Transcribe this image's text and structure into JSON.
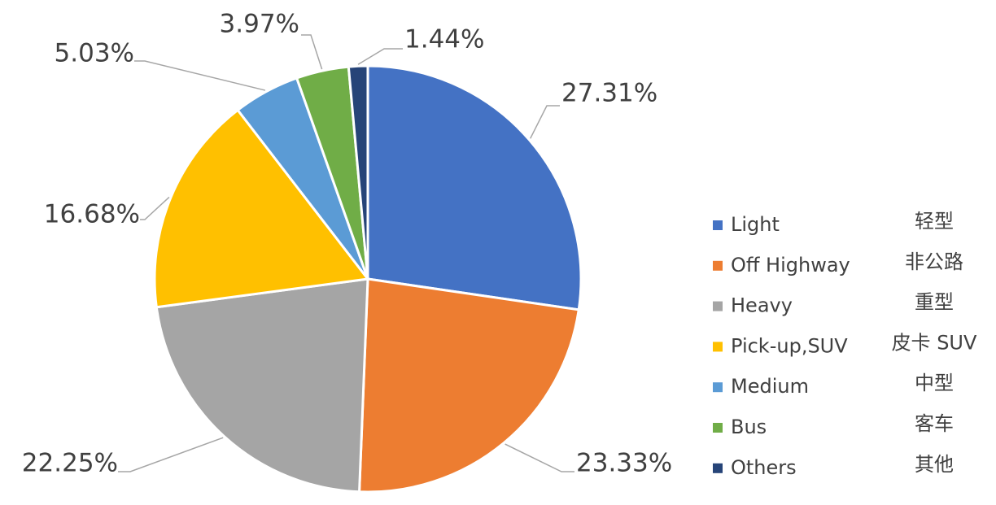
{
  "chart_data": {
    "type": "pie",
    "categories": [
      "Light",
      "Off Highway",
      "Heavy",
      "Pick-up,SUV",
      "Medium",
      "Bus",
      "Others"
    ],
    "categories_zh": [
      "轻型",
      "非公路",
      "重型",
      "皮卡 SUV",
      "中型",
      "客车",
      "其他"
    ],
    "values": [
      27.31,
      23.33,
      22.25,
      16.68,
      5.03,
      3.97,
      1.44
    ],
    "value_labels": [
      "27.31%",
      "23.33%",
      "22.25%",
      "16.68%",
      "5.03%",
      "3.97%",
      "1.44%"
    ],
    "colors": [
      "#4472c4",
      "#ed7d31",
      "#a5a5a5",
      "#ffc000",
      "#5b9bd5",
      "#70ad47",
      "#264478"
    ],
    "legend": "right"
  }
}
